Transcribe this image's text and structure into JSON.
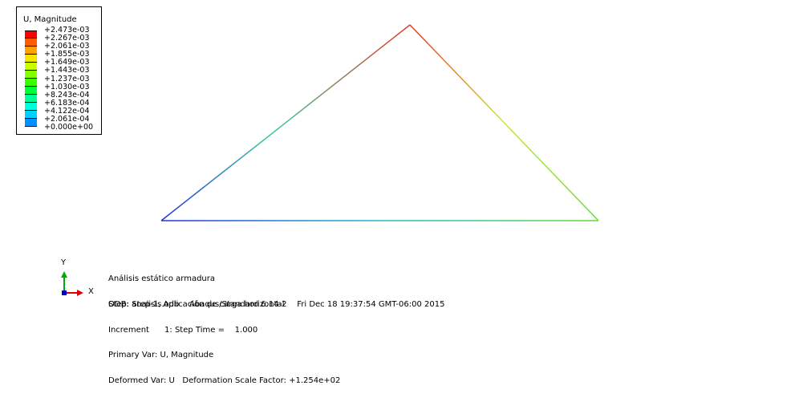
{
  "legend": {
    "title": "U, Magnitude",
    "levels": [
      {
        "label": "+2.473e-03",
        "color": "#ff0000"
      },
      {
        "label": "+2.267e-03",
        "color": "#ff5a00"
      },
      {
        "label": "+2.061e-03",
        "color": "#ffa200"
      },
      {
        "label": "+1.855e-03",
        "color": "#f5e400"
      },
      {
        "label": "+1.649e-03",
        "color": "#c8ff00"
      },
      {
        "label": "+1.443e-03",
        "color": "#82ff00"
      },
      {
        "label": "+1.237e-03",
        "color": "#3aff00"
      },
      {
        "label": "+1.030e-03",
        "color": "#00ff34"
      },
      {
        "label": "+8.243e-04",
        "color": "#00ff95"
      },
      {
        "label": "+6.183e-04",
        "color": "#00ffd8"
      },
      {
        "label": "+4.122e-04",
        "color": "#00cfff"
      },
      {
        "label": "+2.061e-04",
        "color": "#0090ff"
      },
      {
        "label": "+0.000e+00",
        "color": "#0030ff"
      }
    ],
    "bottom_color": "#0000ff"
  },
  "structure": {
    "name": "deformed-truss",
    "colors": {
      "bottom_left": "#2233dd",
      "bottom_right": "#66dd33",
      "top": "#ee3322",
      "left_mid": "#33cc99",
      "right_mid": "#c8e83a"
    }
  },
  "info": {
    "title": "Análisis estático armadura",
    "odb": "ODB: analisis.odb    Abaqus/Standard 6.14-2    Fri Dec 18 19:37:54 GMT-06:00 2015",
    "step": "Step: Step-1, Aplicación de carga horizontal",
    "increment": "Increment      1: Step Time =    1.000",
    "primary_var": "Primary Var: U, Magnitude",
    "deformed_var": "Deformed Var: U   Deformation Scale Factor: +1.254e+02"
  },
  "triad": {
    "y_label": "Y",
    "x_label": "X",
    "y_color": "#00aa00",
    "x_color": "#dd0000",
    "z_color": "#0000cc"
  }
}
